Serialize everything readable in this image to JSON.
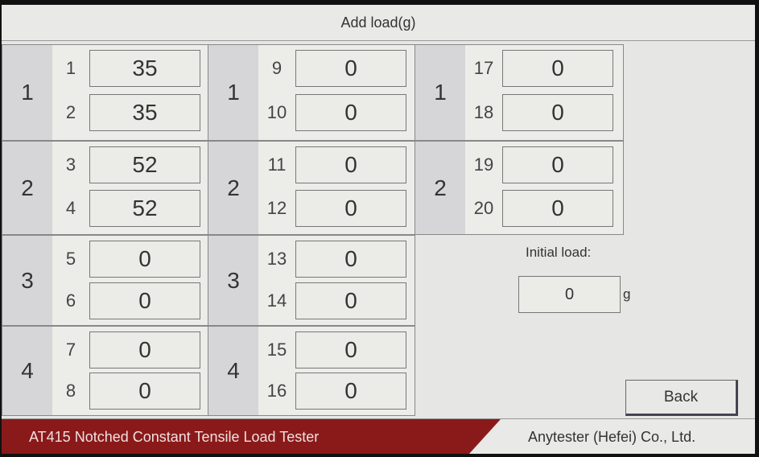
{
  "title": "Add load(g)",
  "columns": [
    {
      "groups": [
        {
          "label": "1",
          "channels": [
            {
              "no": "1",
              "value": "35"
            },
            {
              "no": "2",
              "value": "35"
            }
          ]
        },
        {
          "label": "2",
          "channels": [
            {
              "no": "3",
              "value": "52"
            },
            {
              "no": "4",
              "value": "52"
            }
          ]
        },
        {
          "label": "3",
          "channels": [
            {
              "no": "5",
              "value": "0"
            },
            {
              "no": "6",
              "value": "0"
            }
          ]
        },
        {
          "label": "4",
          "channels": [
            {
              "no": "7",
              "value": "0"
            },
            {
              "no": "8",
              "value": "0"
            }
          ]
        }
      ]
    },
    {
      "groups": [
        {
          "label": "1",
          "channels": [
            {
              "no": "9",
              "value": "0"
            },
            {
              "no": "10",
              "value": "0"
            }
          ]
        },
        {
          "label": "2",
          "channels": [
            {
              "no": "11",
              "value": "0"
            },
            {
              "no": "12",
              "value": "0"
            }
          ]
        },
        {
          "label": "3",
          "channels": [
            {
              "no": "13",
              "value": "0"
            },
            {
              "no": "14",
              "value": "0"
            }
          ]
        },
        {
          "label": "4",
          "channels": [
            {
              "no": "15",
              "value": "0"
            },
            {
              "no": "16",
              "value": "0"
            }
          ]
        }
      ]
    },
    {
      "groups": [
        {
          "label": "1",
          "channels": [
            {
              "no": "17",
              "value": "0"
            },
            {
              "no": "18",
              "value": "0"
            }
          ]
        },
        {
          "label": "2",
          "channels": [
            {
              "no": "19",
              "value": "0"
            },
            {
              "no": "20",
              "value": "0"
            }
          ]
        }
      ]
    }
  ],
  "initial_load": {
    "label": "Initial load:",
    "value": "0",
    "unit": "g"
  },
  "back_label": "Back",
  "footer": {
    "product": "AT415 Notched Constant Tensile Load Tester",
    "company": "Anytester (Hefei) Co., Ltd.",
    "accent": "#8a1a1a"
  }
}
